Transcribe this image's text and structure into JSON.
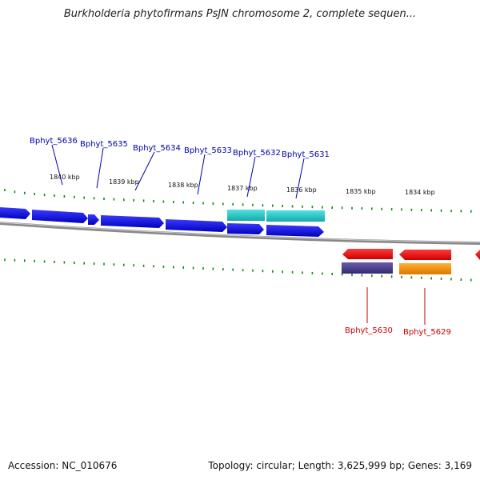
{
  "title": "Burkholderia phytofirmans PsJN chromosome 2, complete sequen...",
  "footer": {
    "accession": "Accession: NC_010676",
    "summary": "Topology: circular; Length: 3,625,999 bp; Genes: 3,169"
  },
  "colors": {
    "forward_gene": "#1010dd",
    "reverse_gene": "#ee1111",
    "forward_label": "#0000aa",
    "reverse_label": "#cc0000",
    "cyan_feature": "#22cccc",
    "purple_feature": "#4a3d8a",
    "orange_feature": "#ff9900",
    "tick": "#118811",
    "backbone": "#888888"
  },
  "kbp_labels": [
    "1840 kbp",
    "1839 kbp",
    "1838 kbp",
    "1837 kbp",
    "1836 kbp",
    "1835 kbp",
    "1834 kbp"
  ],
  "forward_genes": [
    "Bphyt_5636",
    "Bphyt_5635",
    "Bphyt_5634",
    "Bphyt_5633",
    "Bphyt_5632",
    "Bphyt_5631"
  ],
  "reverse_genes": [
    "Bphyt_5630",
    "Bphyt_5629"
  ]
}
